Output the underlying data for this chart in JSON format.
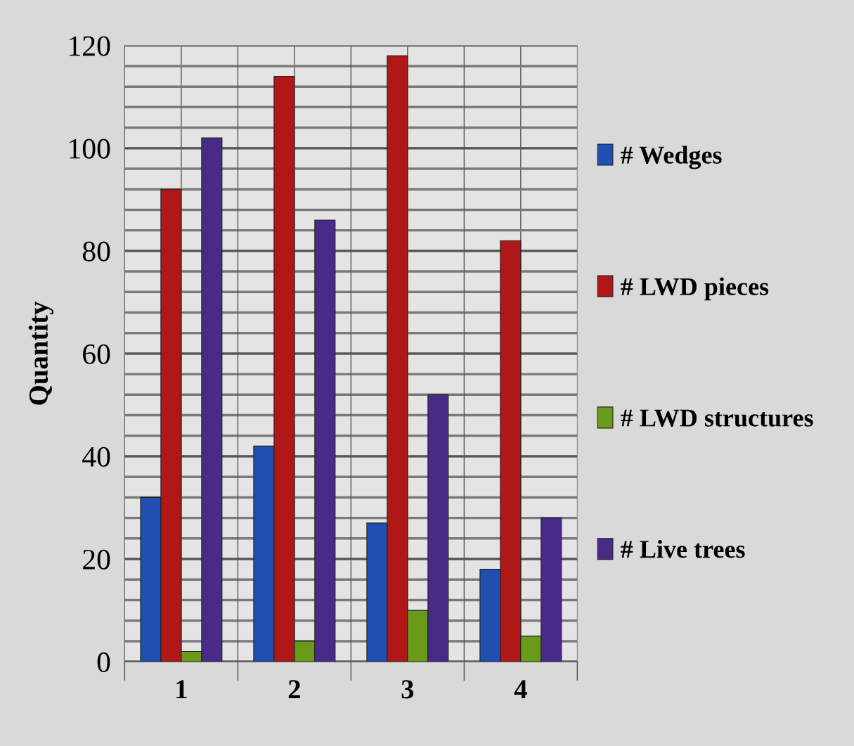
{
  "chart_data": {
    "type": "bar",
    "ylabel": "Quantity",
    "categories": [
      "1",
      "2",
      "3",
      "4"
    ],
    "series": [
      {
        "name": "# Wedges",
        "color": "#1f4fb0",
        "values": [
          32,
          42,
          27,
          18
        ]
      },
      {
        "name": "# LWD pieces",
        "color": "#b01818",
        "values": [
          92,
          114,
          118,
          82
        ]
      },
      {
        "name": "# LWD structures",
        "color": "#6a9a1a",
        "values": [
          2,
          4,
          10,
          5
        ]
      },
      {
        "name": "# Live trees",
        "color": "#4a2a88",
        "values": [
          102,
          86,
          52,
          28
        ]
      }
    ],
    "ylim": [
      0,
      120
    ],
    "yticks": [
      0,
      {
        "value": 4,
        "label": null
      },
      {
        "value": 8,
        "label": null
      },
      {
        "value": 12,
        "label": null
      },
      {
        "value": 16,
        "label": null
      },
      20,
      {
        "value": 24,
        "label": null
      },
      {
        "value": 28,
        "label": null
      },
      {
        "value": 32,
        "label": null
      },
      {
        "value": 36,
        "label": null
      },
      40,
      {
        "value": 44,
        "label": null
      },
      {
        "value": 48,
        "label": null
      },
      {
        "value": 52,
        "label": null
      },
      {
        "value": 56,
        "label": null
      },
      60,
      {
        "value": 64,
        "label": null
      },
      {
        "value": 68,
        "label": null
      },
      {
        "value": 72,
        "label": null
      },
      {
        "value": 76,
        "label": null
      },
      80,
      {
        "value": 84,
        "label": null
      },
      {
        "value": 88,
        "label": null
      },
      {
        "value": 92,
        "label": null
      },
      {
        "value": 96,
        "label": null
      },
      100,
      {
        "value": 104,
        "label": null
      },
      {
        "value": 108,
        "label": null
      },
      {
        "value": 112,
        "label": null
      },
      {
        "value": 116,
        "label": null
      },
      120
    ],
    "grid": true,
    "legend": "right"
  }
}
